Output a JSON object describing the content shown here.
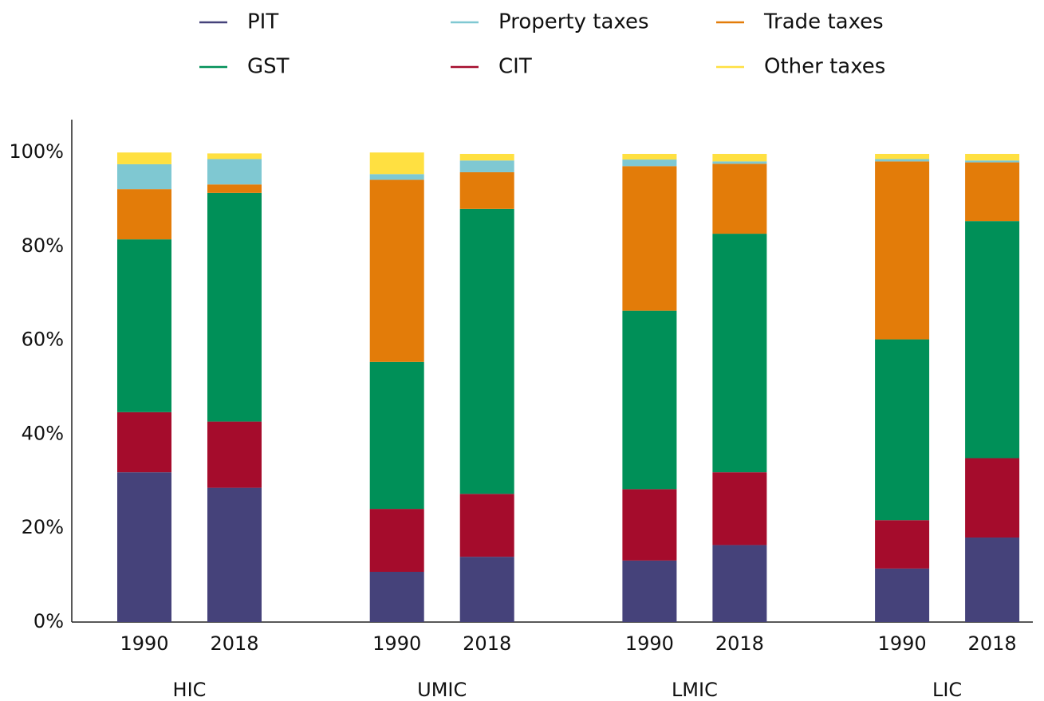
{
  "chart_data": {
    "type": "stacked_bar",
    "categories": [
      "1990",
      "2018",
      "1990",
      "2018",
      "1990",
      "2018",
      "1990",
      "2018"
    ],
    "groups": [
      "HIC",
      "UMIC",
      "LMIC",
      "LIC"
    ],
    "series": [
      {
        "name": "PIT",
        "color": "#45427a",
        "values": [
          31.9,
          28.6,
          10.7,
          13.9,
          13.1,
          16.4,
          11.4,
          18.0
        ]
      },
      {
        "name": "CIT",
        "color": "#a50c2c",
        "values": [
          12.8,
          14.1,
          13.4,
          13.4,
          15.2,
          15.5,
          10.3,
          16.9
        ]
      },
      {
        "name": "GST",
        "color": "#009058",
        "values": [
          36.8,
          48.7,
          31.3,
          60.7,
          38.0,
          50.8,
          38.5,
          50.5
        ]
      },
      {
        "name": "Trade taxes",
        "color": "#e37c09",
        "values": [
          10.7,
          1.8,
          38.8,
          7.8,
          30.8,
          14.9,
          37.9,
          12.5
        ]
      },
      {
        "name": "Property taxes",
        "color": "#7fc8d2",
        "values": [
          5.3,
          5.4,
          1.2,
          2.5,
          1.4,
          0.5,
          0.5,
          0.4
        ]
      },
      {
        "name": "Other taxes",
        "color": "#ffe041",
        "values": [
          2.5,
          1.2,
          4.6,
          1.4,
          1.2,
          1.6,
          1.1,
          1.4
        ]
      }
    ],
    "ylim": [
      0,
      107
    ],
    "yticks": [
      {
        "value": 0,
        "label": "0%"
      },
      {
        "value": 20,
        "label": "20%"
      },
      {
        "value": 40,
        "label": "40%"
      },
      {
        "value": 60,
        "label": "60%"
      },
      {
        "value": 80,
        "label": "80%"
      },
      {
        "value": 100,
        "label": "100%"
      }
    ],
    "grid": false
  }
}
